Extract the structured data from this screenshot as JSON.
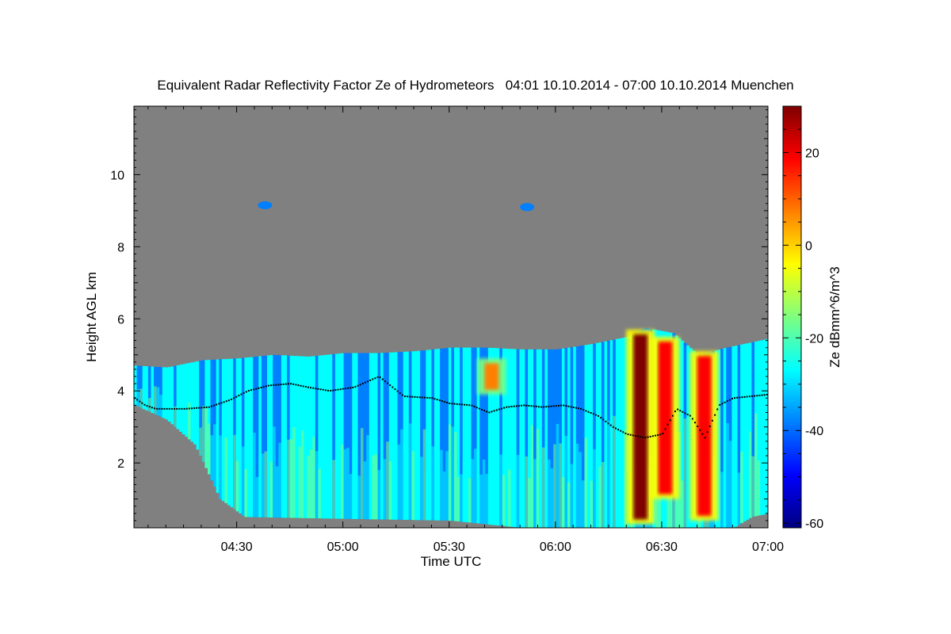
{
  "chart_data": {
    "type": "heatmap",
    "title": "Equivalent Radar Reflectivity Factor Ze of Hydrometeors   04:01 10.10.2014 - 07:00 10.10.2014 Muenchen",
    "xlabel": "Time UTC",
    "ylabel": "Height AGL km",
    "colorbar_label": "Ze dBmm^6/m^3",
    "x_tick_labels": [
      "04:30",
      "05:00",
      "05:30",
      "06:00",
      "06:30",
      "07:00"
    ],
    "x_tick_values_min": [
      270,
      300,
      330,
      360,
      390,
      420
    ],
    "xlim_min": [
      241,
      420
    ],
    "y_tick_labels": [
      "2",
      "4",
      "6",
      "8",
      "10"
    ],
    "y_tick_values": [
      2,
      4,
      6,
      8,
      10
    ],
    "ylim": [
      0.2,
      11.9
    ],
    "colorbar_tick_labels": [
      "20",
      "0",
      "-20",
      "-40",
      "-60"
    ],
    "colorbar_tick_values": [
      20,
      0,
      -20,
      -40,
      -60
    ],
    "colorbar_range": [
      -61,
      30
    ],
    "colormap": [
      "#00007f",
      "#0000ff",
      "#007fff",
      "#00ffff",
      "#7fff7f",
      "#ffff00",
      "#ff7f00",
      "#ff0000",
      "#7f0000"
    ],
    "background_color": "#808080",
    "cloud_top_km": [
      [
        241,
        4.7
      ],
      [
        250,
        4.65
      ],
      [
        260,
        4.85
      ],
      [
        270,
        4.9
      ],
      [
        280,
        5.0
      ],
      [
        290,
        4.95
      ],
      [
        300,
        5.05
      ],
      [
        310,
        5.05
      ],
      [
        320,
        5.1
      ],
      [
        330,
        5.2
      ],
      [
        340,
        5.2
      ],
      [
        350,
        5.15
      ],
      [
        360,
        5.15
      ],
      [
        370,
        5.3
      ],
      [
        380,
        5.5
      ],
      [
        385,
        5.75
      ],
      [
        393,
        5.6
      ],
      [
        400,
        5.0
      ],
      [
        408,
        5.2
      ],
      [
        420,
        5.45
      ]
    ],
    "cloud_base_km": [
      [
        241,
        3.6
      ],
      [
        250,
        3.2
      ],
      [
        258,
        2.5
      ],
      [
        265,
        1.0
      ],
      [
        272,
        0.5
      ],
      [
        300,
        0.45
      ],
      [
        330,
        0.4
      ],
      [
        340,
        0.3
      ],
      [
        350,
        0.2
      ],
      [
        410,
        0.2
      ],
      [
        415,
        0.5
      ],
      [
        420,
        0.6
      ]
    ],
    "cloud_base_points_km": [
      [
        241,
        3.8
      ],
      [
        244,
        3.6
      ],
      [
        247,
        3.5
      ],
      [
        255,
        3.5
      ],
      [
        262,
        3.55
      ],
      [
        268,
        3.75
      ],
      [
        273,
        4.0
      ],
      [
        279,
        4.15
      ],
      [
        285,
        4.2
      ],
      [
        290,
        4.1
      ],
      [
        296,
        4.0
      ],
      [
        303,
        4.1
      ],
      [
        310,
        4.4
      ],
      [
        317,
        3.85
      ],
      [
        325,
        3.8
      ],
      [
        330,
        3.65
      ],
      [
        336,
        3.6
      ],
      [
        341,
        3.4
      ],
      [
        346,
        3.55
      ],
      [
        351,
        3.6
      ],
      [
        356,
        3.55
      ],
      [
        362,
        3.6
      ],
      [
        367,
        3.5
      ],
      [
        372,
        3.3
      ],
      [
        376,
        3.0
      ],
      [
        380,
        2.8
      ],
      [
        385,
        2.7
      ],
      [
        390,
        2.8
      ],
      [
        394,
        3.5
      ],
      [
        398,
        3.3
      ],
      [
        402,
        2.7
      ],
      [
        406,
        3.6
      ],
      [
        410,
        3.8
      ],
      [
        415,
        3.85
      ],
      [
        420,
        3.9
      ]
    ],
    "strong_echo_cores": [
      {
        "time_min": 342,
        "top_km": 4.9,
        "bottom_km": 3.9,
        "peak_dbz": 10
      },
      {
        "time_min": 384,
        "top_km": 5.7,
        "bottom_km": 0.3,
        "peak_dbz": 25
      },
      {
        "time_min": 391,
        "top_km": 5.5,
        "bottom_km": 1.0,
        "peak_dbz": 20
      },
      {
        "time_min": 402,
        "top_km": 5.1,
        "bottom_km": 0.4,
        "peak_dbz": 22
      }
    ],
    "isolated_echoes": [
      {
        "time_min": 278,
        "height_km": 9.15,
        "dbz": -35
      },
      {
        "time_min": 352,
        "height_km": 9.1,
        "dbz": -38
      }
    ]
  }
}
